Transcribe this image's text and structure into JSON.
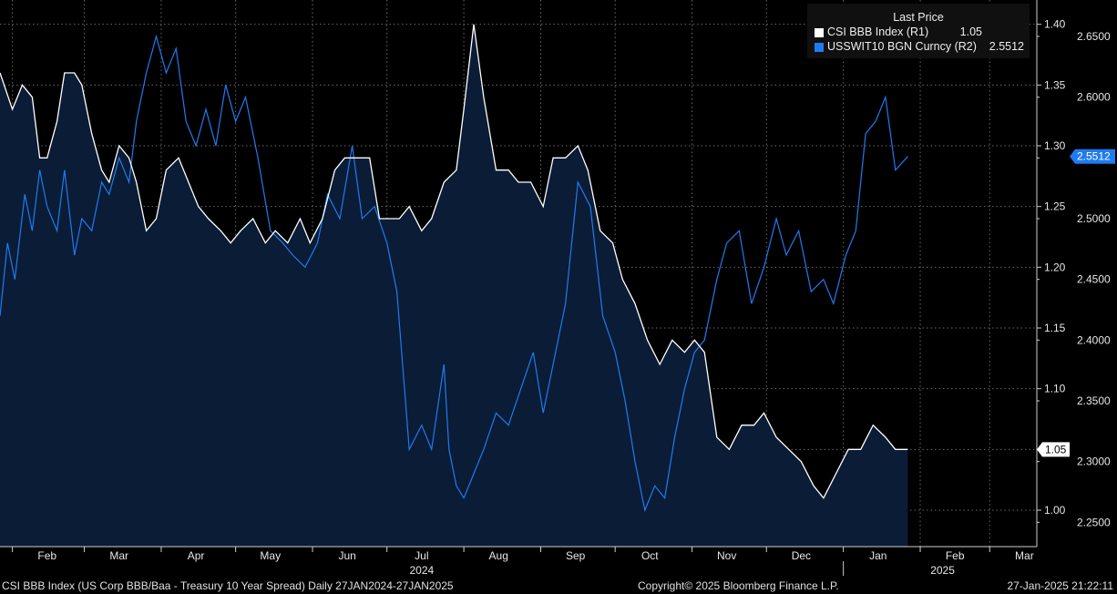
{
  "chart_data": {
    "type": "line",
    "title": "",
    "legend": {
      "header": "Last Price",
      "placement": "top-right",
      "entries": [
        {
          "name": "CSI BBB Index  (R1)",
          "value": "1.05",
          "color": "#ffffff"
        },
        {
          "name": "USSWIT10 BGN Curncy  (R2)",
          "value": "2.5512",
          "color": "#1f7bf0"
        }
      ]
    },
    "x_axis": {
      "range": [
        "2024-01-27",
        "2025-03-20"
      ],
      "month_ticks": [
        "Feb",
        "Mar",
        "Apr",
        "May",
        "Jun",
        "Jul",
        "Aug",
        "Sep",
        "Oct",
        "Nov",
        "Dec",
        "Jan",
        "Feb",
        "Mar"
      ],
      "year_labels": [
        "2024",
        "2025"
      ]
    },
    "y_axis_r1": {
      "range": [
        0.97,
        1.42
      ],
      "ticks": [
        "1.00",
        "1.05",
        "1.10",
        "1.15",
        "1.20",
        "1.25",
        "1.30",
        "1.35",
        "1.40"
      ],
      "last_value_label": "1.05"
    },
    "y_axis_r2": {
      "range": [
        2.23,
        2.68
      ],
      "ticks": [
        "2.2500",
        "2.3000",
        "2.3500",
        "2.4000",
        "2.4500",
        "2.5000",
        "2.5500",
        "2.6000",
        "2.6500"
      ],
      "last_value_label": "2.5512"
    },
    "grid": true,
    "series": [
      {
        "name": "CSI BBB Index  (R1)",
        "axis": "R1",
        "color": "#ffffff",
        "fill": "#0b1c36",
        "x": [
          "2024-01-27",
          "2024-02-01",
          "2024-02-05",
          "2024-02-09",
          "2024-02-12",
          "2024-02-15",
          "2024-02-19",
          "2024-02-22",
          "2024-02-26",
          "2024-02-29",
          "2024-03-04",
          "2024-03-08",
          "2024-03-11",
          "2024-03-15",
          "2024-03-19",
          "2024-03-22",
          "2024-03-26",
          "2024-03-30",
          "2024-04-03",
          "2024-04-08",
          "2024-04-12",
          "2024-04-16",
          "2024-04-20",
          "2024-04-25",
          "2024-04-29",
          "2024-05-03",
          "2024-05-08",
          "2024-05-13",
          "2024-05-17",
          "2024-05-22",
          "2024-05-27",
          "2024-05-31",
          "2024-06-05",
          "2024-06-10",
          "2024-06-14",
          "2024-06-19",
          "2024-06-24",
          "2024-06-28",
          "2024-07-02",
          "2024-07-06",
          "2024-07-10",
          "2024-07-15",
          "2024-07-19",
          "2024-07-24",
          "2024-07-29",
          "2024-08-01",
          "2024-08-05",
          "2024-08-09",
          "2024-08-14",
          "2024-08-19",
          "2024-08-23",
          "2024-08-28",
          "2024-09-02",
          "2024-09-06",
          "2024-09-11",
          "2024-09-16",
          "2024-09-20",
          "2024-09-25",
          "2024-09-30",
          "2024-10-04",
          "2024-10-09",
          "2024-10-14",
          "2024-10-19",
          "2024-10-24",
          "2024-10-29",
          "2024-11-02",
          "2024-11-06",
          "2024-11-11",
          "2024-11-16",
          "2024-11-21",
          "2024-11-26",
          "2024-11-30",
          "2024-12-05",
          "2024-12-10",
          "2024-12-15",
          "2024-12-20",
          "2024-12-24",
          "2024-12-29",
          "2025-01-03",
          "2025-01-08",
          "2025-01-13",
          "2025-01-18",
          "2025-01-22",
          "2025-01-27"
        ],
        "values": [
          1.36,
          1.33,
          1.35,
          1.34,
          1.29,
          1.29,
          1.32,
          1.36,
          1.36,
          1.35,
          1.31,
          1.28,
          1.27,
          1.3,
          1.29,
          1.27,
          1.23,
          1.24,
          1.28,
          1.29,
          1.27,
          1.25,
          1.24,
          1.23,
          1.22,
          1.23,
          1.24,
          1.22,
          1.23,
          1.22,
          1.24,
          1.22,
          1.24,
          1.28,
          1.29,
          1.29,
          1.29,
          1.24,
          1.24,
          1.24,
          1.25,
          1.23,
          1.24,
          1.27,
          1.28,
          1.33,
          1.4,
          1.34,
          1.28,
          1.28,
          1.27,
          1.27,
          1.25,
          1.29,
          1.29,
          1.3,
          1.28,
          1.23,
          1.22,
          1.19,
          1.17,
          1.14,
          1.12,
          1.14,
          1.13,
          1.14,
          1.13,
          1.06,
          1.05,
          1.07,
          1.07,
          1.08,
          1.06,
          1.05,
          1.04,
          1.02,
          1.01,
          1.03,
          1.05,
          1.05,
          1.07,
          1.06,
          1.05,
          1.05
        ]
      },
      {
        "name": "USSWIT10 BGN Curncy  (R2)",
        "axis": "R2",
        "color": "#1f7bf0",
        "x": [
          "2024-01-27",
          "2024-01-30",
          "2024-02-02",
          "2024-02-06",
          "2024-02-09",
          "2024-02-12",
          "2024-02-15",
          "2024-02-19",
          "2024-02-22",
          "2024-02-26",
          "2024-02-29",
          "2024-03-04",
          "2024-03-08",
          "2024-03-11",
          "2024-03-15",
          "2024-03-19",
          "2024-03-22",
          "2024-03-26",
          "2024-03-30",
          "2024-04-03",
          "2024-04-07",
          "2024-04-11",
          "2024-04-15",
          "2024-04-19",
          "2024-04-23",
          "2024-04-27",
          "2024-05-01",
          "2024-05-05",
          "2024-05-10",
          "2024-05-15",
          "2024-05-20",
          "2024-05-24",
          "2024-05-29",
          "2024-06-03",
          "2024-06-07",
          "2024-06-12",
          "2024-06-17",
          "2024-06-21",
          "2024-06-26",
          "2024-07-01",
          "2024-07-05",
          "2024-07-10",
          "2024-07-15",
          "2024-07-19",
          "2024-07-24",
          "2024-07-26",
          "2024-07-29",
          "2024-08-01",
          "2024-08-05",
          "2024-08-09",
          "2024-08-14",
          "2024-08-19",
          "2024-08-24",
          "2024-08-29",
          "2024-09-02",
          "2024-09-06",
          "2024-09-11",
          "2024-09-16",
          "2024-09-21",
          "2024-09-26",
          "2024-10-01",
          "2024-10-05",
          "2024-10-09",
          "2024-10-13",
          "2024-10-17",
          "2024-10-21",
          "2024-10-25",
          "2024-10-29",
          "2024-11-02",
          "2024-11-06",
          "2024-11-11",
          "2024-11-15",
          "2024-11-20",
          "2024-11-25",
          "2024-11-30",
          "2024-12-05",
          "2024-12-09",
          "2024-12-14",
          "2024-12-19",
          "2024-12-24",
          "2024-12-28",
          "2025-01-02",
          "2025-01-06",
          "2025-01-10",
          "2025-01-14",
          "2025-01-18",
          "2025-01-22",
          "2025-01-27"
        ],
        "values": [
          2.42,
          2.48,
          2.45,
          2.52,
          2.49,
          2.54,
          2.51,
          2.49,
          2.54,
          2.47,
          2.5,
          2.49,
          2.53,
          2.52,
          2.55,
          2.53,
          2.58,
          2.62,
          2.65,
          2.62,
          2.64,
          2.58,
          2.56,
          2.59,
          2.56,
          2.61,
          2.58,
          2.6,
          2.55,
          2.49,
          2.48,
          2.47,
          2.46,
          2.48,
          2.52,
          2.5,
          2.56,
          2.5,
          2.51,
          2.48,
          2.44,
          2.31,
          2.33,
          2.31,
          2.38,
          2.31,
          2.28,
          2.27,
          2.29,
          2.31,
          2.34,
          2.33,
          2.36,
          2.39,
          2.34,
          2.38,
          2.43,
          2.53,
          2.51,
          2.42,
          2.39,
          2.35,
          2.3,
          2.26,
          2.28,
          2.27,
          2.32,
          2.36,
          2.39,
          2.4,
          2.45,
          2.48,
          2.49,
          2.43,
          2.46,
          2.5,
          2.47,
          2.49,
          2.44,
          2.45,
          2.43,
          2.47,
          2.49,
          2.57,
          2.58,
          2.6,
          2.54,
          2.5512
        ]
      }
    ]
  },
  "footer": {
    "description": "CSI BBB Index (US Corp BBB/Baa - Treasury 10 Year Spread)  Daily 27JAN2024-27JAN2025",
    "copyright": "Copyright© 2025 Bloomberg Finance L.P.",
    "timestamp": "27-Jan-2025 21:22:11"
  }
}
